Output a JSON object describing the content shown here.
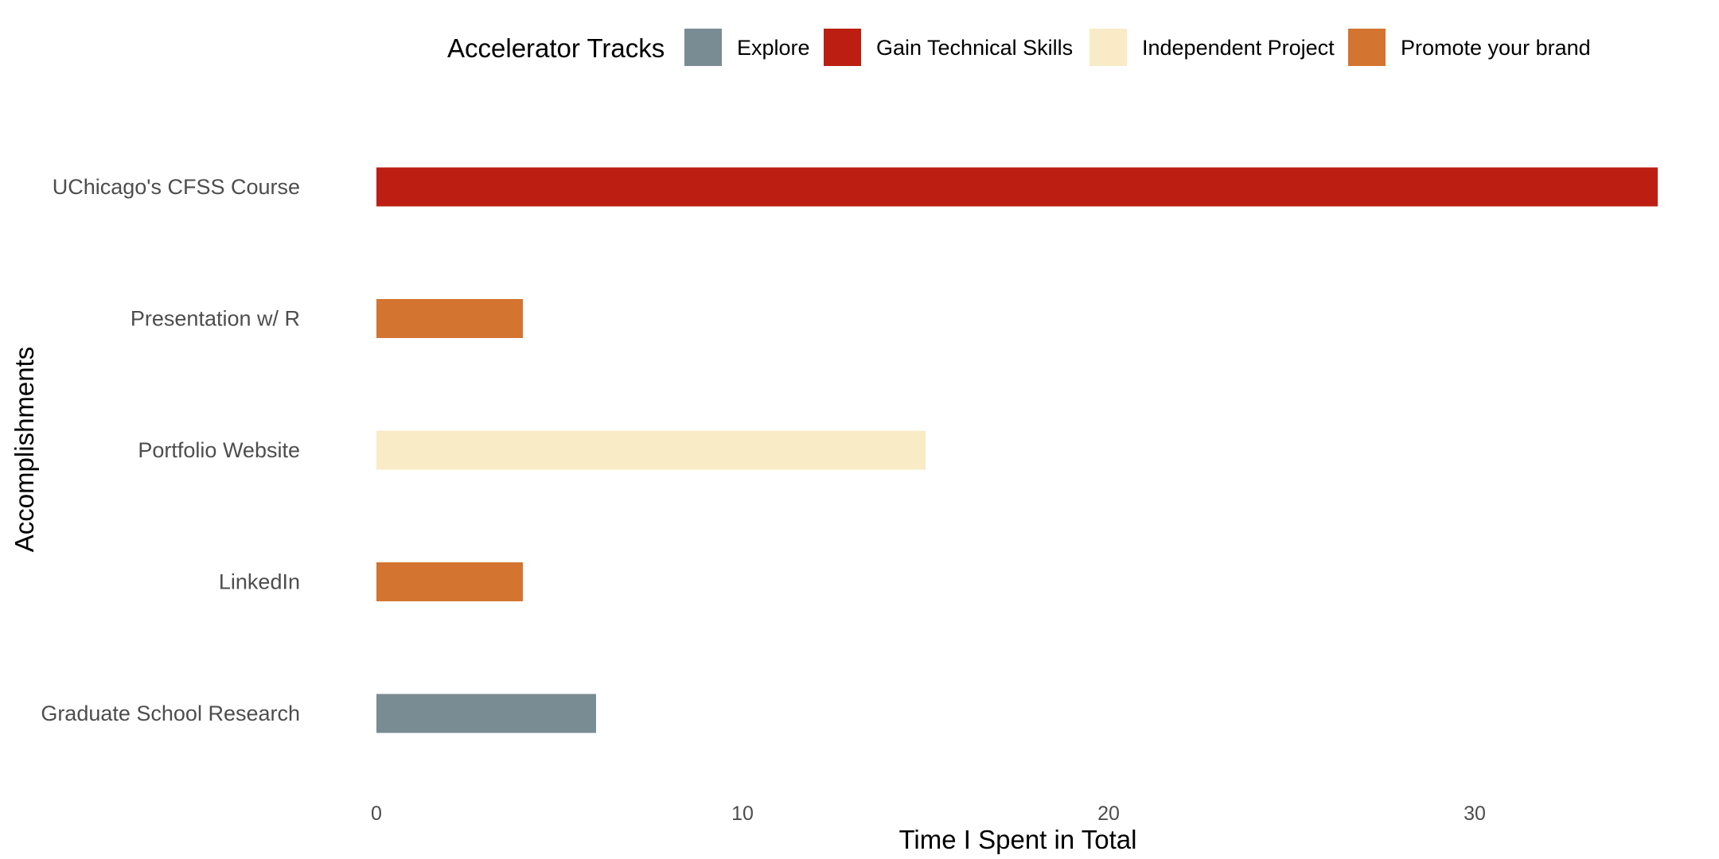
{
  "chart_data": {
    "type": "bar",
    "orientation": "horizontal",
    "categories": [
      "UChicago's CFSS Course",
      "Presentation w/ R",
      "Portfolio Website",
      "LinkedIn",
      "Graduate School Research"
    ],
    "values": [
      35,
      4,
      15,
      4,
      6
    ],
    "tracks": [
      "Gain Technical Skills",
      "Promote your brand",
      "Independent Project",
      "Promote your brand",
      "Explore"
    ],
    "xlabel": "Time I Spent in Total",
    "ylabel": "Accomplishments",
    "xlim": [
      0,
      35
    ],
    "xticks": [
      "0",
      "10",
      "20",
      "30"
    ],
    "grid": false,
    "legend": {
      "title": "Accelerator Tracks",
      "placement": "top",
      "entries": [
        {
          "name": "Explore",
          "color": "#7a8c93"
        },
        {
          "name": "Gain Technical Skills",
          "color": "#bc1f12"
        },
        {
          "name": "Independent Project",
          "color": "#f8ebc6"
        },
        {
          "name": "Promote your brand",
          "color": "#d37430"
        }
      ]
    }
  }
}
